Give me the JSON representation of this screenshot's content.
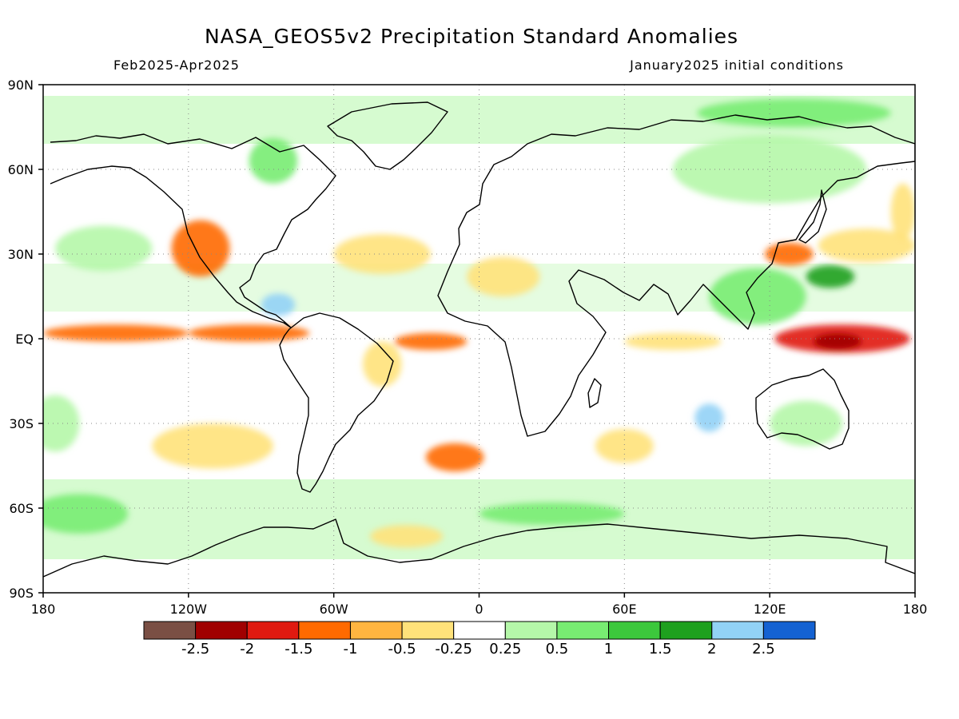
{
  "figure": {
    "title": "NASA_GEOS5v2 Precipitation Standard Anomalies",
    "period": "Feb2025-Apr2025",
    "initial_conditions": "January2025 initial conditions"
  },
  "map": {
    "projection": "equirectangular",
    "lon_range": [
      -180,
      180
    ],
    "lat_range": [
      -90,
      90
    ],
    "lat_tick_labels": [
      "90N",
      "60N",
      "30N",
      "EQ",
      "30S",
      "60S",
      "90S"
    ],
    "lat_tick_values": [
      90,
      60,
      30,
      0,
      -30,
      -60,
      -90
    ],
    "lon_tick_labels": [
      "180",
      "120W",
      "60W",
      "0",
      "60E",
      "120E",
      "180"
    ],
    "lon_tick_values": [
      -180,
      -120,
      -60,
      0,
      60,
      120,
      180
    ],
    "grid": "dotted",
    "coastlines": true
  },
  "colorbar": {
    "colors": [
      "#7a4f44",
      "#a00000",
      "#e01a10",
      "#ff6a00",
      "#ffb540",
      "#ffe27a",
      "#ffffff",
      "#b5f7a9",
      "#78ec72",
      "#3cc83c",
      "#1ea01e",
      "#92d2f6",
      "#1462d2"
    ],
    "tick_labels": [
      "-2.5",
      "-2",
      "-1.5",
      "-1",
      "-0.5",
      "-0.25",
      "0.25",
      "0.5",
      "1",
      "1.5",
      "2",
      "2.5"
    ]
  },
  "anomaly_features": [
    {
      "type": "blob",
      "lon": -150,
      "lat": 2,
      "rx": 30,
      "ry": 3,
      "level": -1
    },
    {
      "type": "blob",
      "lon": -95,
      "lat": 2,
      "rx": 25,
      "ry": 3,
      "level": -1
    },
    {
      "type": "blob",
      "lon": -20,
      "lat": -1,
      "rx": 15,
      "ry": 3,
      "level": -1
    },
    {
      "type": "blob",
      "lon": 150,
      "lat": 0,
      "rx": 28,
      "ry": 5,
      "level": -1.5
    },
    {
      "type": "blob",
      "lon": 148,
      "lat": -1,
      "rx": 10,
      "ry": 3,
      "level": -2
    },
    {
      "type": "blob",
      "lon": 80,
      "lat": -1,
      "rx": 20,
      "ry": 3,
      "level": -0.5
    },
    {
      "type": "blob",
      "lon": -115,
      "lat": 32,
      "rx": 12,
      "ry": 10,
      "level": -1
    },
    {
      "type": "blob",
      "lon": -40,
      "lat": 30,
      "rx": 20,
      "ry": 7,
      "level": -0.5
    },
    {
      "type": "blob",
      "lon": 10,
      "lat": 22,
      "rx": 15,
      "ry": 7,
      "level": -0.5
    },
    {
      "type": "blob",
      "lon": 128,
      "lat": 30,
      "rx": 10,
      "ry": 4,
      "level": -1
    },
    {
      "type": "blob",
      "lon": -40,
      "lat": -9,
      "rx": 8,
      "ry": 8,
      "level": -0.5
    },
    {
      "type": "blob",
      "lon": -10,
      "lat": -42,
      "rx": 12,
      "ry": 5,
      "level": -1
    },
    {
      "type": "blob",
      "lon": -110,
      "lat": -38,
      "rx": 25,
      "ry": 8,
      "level": -0.5
    },
    {
      "type": "blob",
      "lon": 60,
      "lat": -38,
      "rx": 12,
      "ry": 6,
      "level": -0.5
    },
    {
      "type": "blob",
      "lon": -30,
      "lat": -70,
      "rx": 15,
      "ry": 4,
      "level": -0.5
    },
    {
      "type": "blob",
      "lon": 160,
      "lat": 33,
      "rx": 20,
      "ry": 6,
      "level": -0.5
    },
    {
      "type": "blob",
      "lon": 175,
      "lat": 45,
      "rx": 5,
      "ry": 10,
      "level": -0.5
    },
    {
      "type": "blob",
      "lon": -155,
      "lat": 32,
      "rx": 20,
      "ry": 8,
      "level": 0.5
    },
    {
      "type": "blob",
      "lon": -175,
      "lat": -30,
      "rx": 10,
      "ry": 10,
      "level": 0.5
    },
    {
      "type": "blob",
      "lon": -165,
      "lat": -62,
      "rx": 20,
      "ry": 7,
      "level": 1
    },
    {
      "type": "blob",
      "lon": 135,
      "lat": -30,
      "rx": 15,
      "ry": 8,
      "level": 0.5
    },
    {
      "type": "blob",
      "lon": 115,
      "lat": 15,
      "rx": 20,
      "ry": 10,
      "level": 1
    },
    {
      "type": "blob",
      "lon": 145,
      "lat": 22,
      "rx": 10,
      "ry": 4,
      "level": 2
    },
    {
      "type": "blob",
      "lon": 95,
      "lat": -28,
      "rx": 6,
      "ry": 5,
      "level": 2.5
    },
    {
      "type": "blob",
      "lon": -83,
      "lat": 12,
      "rx": 7,
      "ry": 4,
      "level": 2.5
    },
    {
      "type": "blob",
      "lon": -85,
      "lat": 63,
      "rx": 10,
      "ry": 8,
      "level": 1
    },
    {
      "type": "blob",
      "lon": 130,
      "lat": 80,
      "rx": 40,
      "ry": 5,
      "level": 1
    },
    {
      "type": "blob",
      "lon": 30,
      "lat": -62,
      "rx": 30,
      "ry": 4,
      "level": 1
    },
    {
      "type": "blob",
      "lon": 120,
      "lat": 60,
      "rx": 40,
      "ry": 12,
      "level": 0.5
    }
  ]
}
